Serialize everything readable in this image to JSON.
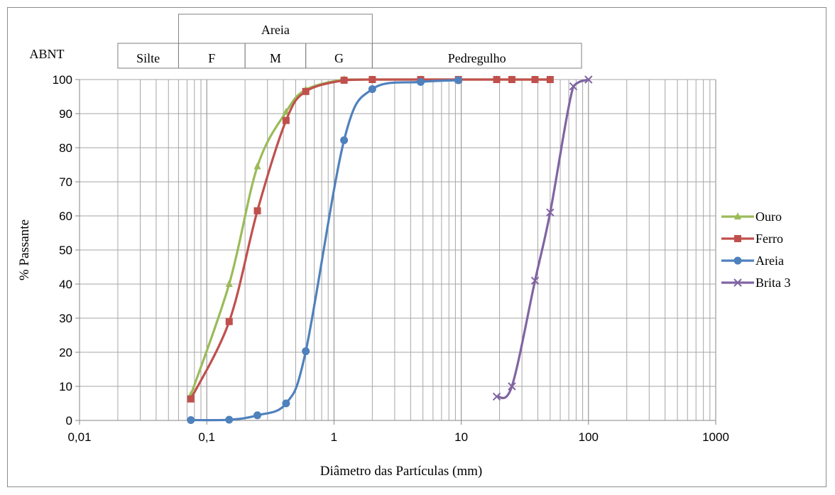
{
  "chart_data": {
    "type": "line",
    "xscale": "log",
    "xlim": [
      0.01,
      1000
    ],
    "ylim": [
      0,
      100
    ],
    "xlabel": "Diâmetro das Partículas (mm)",
    "ylabel": "% Passante",
    "x_ticks": [
      {
        "value": 0.01,
        "label": "0,01"
      },
      {
        "value": 0.1,
        "label": "0,1"
      },
      {
        "value": 1,
        "label": "1"
      },
      {
        "value": 10,
        "label": "10"
      },
      {
        "value": 100,
        "label": "100"
      },
      {
        "value": 1000,
        "label": "1000"
      }
    ],
    "y_ticks": [
      0,
      10,
      20,
      30,
      40,
      50,
      60,
      70,
      80,
      90,
      100
    ],
    "grid": true,
    "legend": "right",
    "series": [
      {
        "name": "Ouro",
        "color": "#9bbb59",
        "marker": "triangle",
        "points": [
          [
            0.075,
            7.5
          ],
          [
            0.15,
            40
          ],
          [
            0.25,
            74.5
          ],
          [
            0.42,
            90.5
          ],
          [
            0.6,
            97
          ],
          [
            1.2,
            100
          ],
          [
            2,
            100
          ],
          [
            4.8,
            100
          ],
          [
            9.5,
            100
          ],
          [
            19,
            100
          ],
          [
            25,
            100
          ],
          [
            38,
            100
          ],
          [
            50,
            100
          ]
        ]
      },
      {
        "name": "Ferro",
        "color": "#c0504d",
        "marker": "square",
        "points": [
          [
            0.075,
            6.3
          ],
          [
            0.15,
            29
          ],
          [
            0.25,
            61.5
          ],
          [
            0.42,
            88
          ],
          [
            0.6,
            96.5
          ],
          [
            1.2,
            99.8
          ],
          [
            2,
            100
          ],
          [
            4.8,
            100
          ],
          [
            9.5,
            100
          ],
          [
            19,
            100
          ],
          [
            25,
            100
          ],
          [
            38,
            100
          ],
          [
            50,
            100
          ]
        ]
      },
      {
        "name": "Areia",
        "color": "#4f81bd",
        "marker": "circle",
        "points": [
          [
            0.075,
            0.1
          ],
          [
            0.15,
            0.2
          ],
          [
            0.25,
            1.5
          ],
          [
            0.42,
            5
          ],
          [
            0.6,
            20.3
          ],
          [
            1.2,
            82.2
          ],
          [
            2,
            97.2
          ],
          [
            4.8,
            99.3
          ],
          [
            9.5,
            99.8
          ]
        ]
      },
      {
        "name": "Brita 3",
        "color": "#8064a2",
        "marker": "x",
        "points": [
          [
            19,
            7
          ],
          [
            25,
            10
          ],
          [
            38,
            41
          ],
          [
            50,
            61
          ],
          [
            76,
            98
          ],
          [
            100,
            100
          ]
        ]
      }
    ],
    "classification": {
      "system_label": "ABNT",
      "group_label": "Areia",
      "bands": [
        {
          "label": "Silte",
          "from": 0.02,
          "to": 0.06
        },
        {
          "label": "F",
          "from": 0.06,
          "to": 0.2
        },
        {
          "label": "M",
          "from": 0.2,
          "to": 0.6
        },
        {
          "label": "G",
          "from": 0.6,
          "to": 2
        },
        {
          "label": "Pedregulho",
          "from": 2,
          "to": 60
        }
      ],
      "group_from": 0.06,
      "group_to": 2
    }
  }
}
